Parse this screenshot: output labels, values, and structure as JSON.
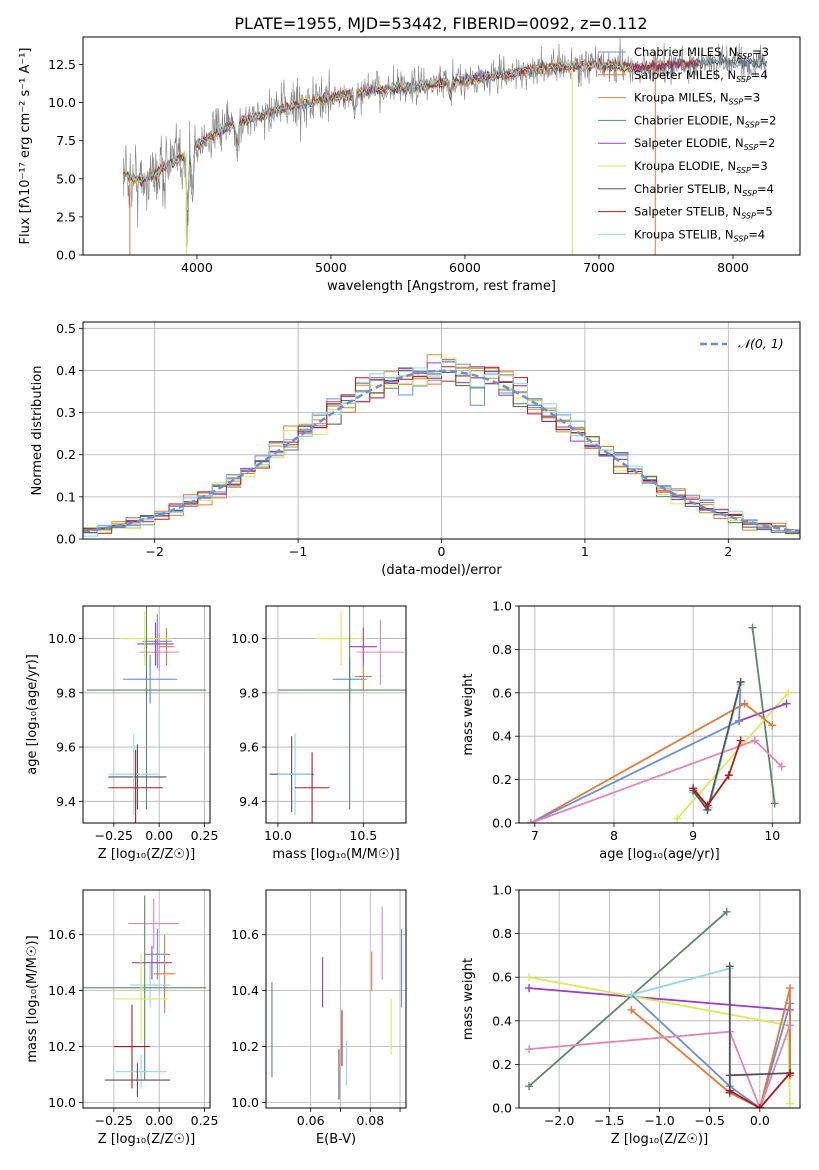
{
  "figure_title": "PLATE=1955, MJD=53442, FIBERID=0092, z=0.112",
  "series_colors": {
    "Chabrier MILES": "#6a8fd8",
    "Salpeter MILES": "#e07b3a",
    "Kroupa MILES": "#c8912e",
    "Chabrier ELODIE": "#5a8a62",
    "Salpeter ELODIE": "#9a3fbf",
    "Kroupa ELODIE": "#d9ea55",
    "Chabrier STELIB": "#555555",
    "Salpeter STELIB": "#b01c1c",
    "Kroupa STELIB": "#8ed8e8",
    "data": "#808080",
    "pink": "#e484b8"
  },
  "chart_data": [
    {
      "id": "spectrum",
      "type": "line",
      "xlabel": "wavelength [Angstrom, rest frame]",
      "ylabel": "Flux [fλ10⁻¹⁷ erg cm⁻² s⁻¹ A⁻¹]",
      "xlim": [
        3150,
        8500
      ],
      "ylim": [
        0,
        14.3
      ],
      "xticks": [
        4000,
        5000,
        6000,
        7000,
        8000
      ],
      "xtick_labels": [
        "4000",
        "5000",
        "6000",
        "7000",
        "8000"
      ],
      "yticks": [
        0,
        2.5,
        5,
        7.5,
        10,
        12.5
      ],
      "ytick_labels": [
        "0.0",
        "2.5",
        "5.0",
        "7.5",
        "10.0",
        "12.5"
      ],
      "grid": false,
      "legend_position": "right",
      "legend": [
        {
          "name": "Chabrier MILES, N",
          "sub": "SSP",
          "suffix": "=3"
        },
        {
          "name": "Salpeter MILES, N",
          "sub": "SSP",
          "suffix": "=4"
        },
        {
          "name": "Kroupa MILES, N",
          "sub": "SSP",
          "suffix": "=3"
        },
        {
          "name": "Chabrier ELODIE, N",
          "sub": "SSP",
          "suffix": "=2"
        },
        {
          "name": "Salpeter ELODIE, N",
          "sub": "SSP",
          "suffix": "=2"
        },
        {
          "name": "Kroupa ELODIE, N",
          "sub": "SSP",
          "suffix": "=3"
        },
        {
          "name": "Chabrier STELIB, N",
          "sub": "SSP",
          "suffix": "=4"
        },
        {
          "name": "Salpeter STELIB, N",
          "sub": "SSP",
          "suffix": "=5"
        },
        {
          "name": "Kroupa STELIB, N",
          "sub": "SSP",
          "suffix": "=4"
        }
      ],
      "continuum": {
        "wavelength": [
          3450,
          3520,
          3600,
          3700,
          3800,
          3900,
          4000,
          4100,
          4200,
          4300,
          4500,
          4700,
          5000,
          5300,
          5600,
          6000,
          6300,
          6600,
          7000,
          7300,
          7600,
          8000,
          8250
        ],
        "flux": [
          5.5,
          5.0,
          4.9,
          5.4,
          6.0,
          6.5,
          7.2,
          7.8,
          8.2,
          8.7,
          9.2,
          9.8,
          10.3,
          10.8,
          11.0,
          11.5,
          11.8,
          12.3,
          12.5,
          12.3,
          12.5,
          12.7,
          12.5
        ]
      },
      "dips": [
        {
          "wavelength": 3930,
          "flux": 2.2
        },
        {
          "wavelength": 3965,
          "flux": 3.4
        },
        {
          "wavelength": 4300,
          "flux": 6.6
        },
        {
          "wavelength": 5175,
          "flux": 9.0
        },
        {
          "wavelength": 5890,
          "flux": 10.2
        }
      ]
    },
    {
      "id": "residuals",
      "type": "histogram",
      "xlabel": "(data-model)/error",
      "ylabel": "Normed distribution",
      "xlim": [
        -2.5,
        2.5
      ],
      "ylim": [
        0,
        0.515
      ],
      "xticks": [
        -2,
        -1,
        0,
        1,
        2
      ],
      "xtick_labels": [
        "−2",
        "−1",
        "0",
        "1",
        "2"
      ],
      "yticks": [
        0,
        0.1,
        0.2,
        0.3,
        0.4,
        0.5
      ],
      "ytick_labels": [
        "0.0",
        "0.1",
        "0.2",
        "0.3",
        "0.4",
        "0.5"
      ],
      "grid": true,
      "bin_width": 0.1,
      "legend_label": "𝒩(0, 1)",
      "legend_position": "top-right",
      "reference": {
        "name": "N(0,1)",
        "mean": 0,
        "sigma": 1
      }
    },
    {
      "id": "age-vs-z",
      "type": "errorbar",
      "xlabel": "Z [log₁₀(Z/Z☉)]",
      "ylabel": "age  [log₁₀(age/yr)]",
      "xlim": [
        -0.42,
        0.28
      ],
      "ylim": [
        9.32,
        10.12
      ],
      "xticks": [
        -0.25,
        0,
        0.25
      ],
      "xtick_labels": [
        "−0.25",
        "0.00",
        "0.25"
      ],
      "yticks": [
        9.4,
        9.6,
        9.8,
        10.0
      ],
      "ytick_labels": [
        "9.4",
        "9.6",
        "9.8",
        "10.0"
      ],
      "grid": true,
      "points": [
        {
          "series": "Chabrier MILES",
          "x": -0.01,
          "xerr": 0.08,
          "y": 9.99,
          "yerr": 0.1
        },
        {
          "series": "Salpeter MILES",
          "x": 0.04,
          "xerr": 0.04,
          "y": 9.97,
          "yerr": 0.07
        },
        {
          "series": "pink",
          "x": 0.0,
          "xerr": 0.11,
          "y": 9.95,
          "yerr": 0.07
        },
        {
          "series": "Salpeter ELODIE",
          "x": -0.02,
          "xerr": 0.1,
          "y": 9.98,
          "yerr": 0.08
        },
        {
          "series": "Kroupa ELODIE",
          "x": -0.08,
          "xerr": 0.14,
          "y": 10.0,
          "yerr": 0.1
        },
        {
          "series": "Kroupa STELIB",
          "x": -0.05,
          "xerr": 0.12,
          "y": 9.85,
          "yerr": 0.08
        },
        {
          "series": "Chabrier MILES",
          "x": -0.05,
          "xerr": 0.15,
          "y": 9.85,
          "yerr": 0.09
        },
        {
          "series": "Chabrier ELODIE",
          "x": -0.07,
          "xerr": 0.33,
          "y": 9.81,
          "yerr": 0.44
        },
        {
          "series": "Chabrier STELIB",
          "x": -0.12,
          "xerr": 0.16,
          "y": 9.49,
          "yerr": 0.12
        },
        {
          "series": "Kroupa STELIB",
          "x": -0.14,
          "xerr": 0.14,
          "y": 9.5,
          "yerr": 0.15
        },
        {
          "series": "Salpeter STELIB",
          "x": -0.13,
          "xerr": 0.15,
          "y": 9.45,
          "yerr": 0.14
        }
      ]
    },
    {
      "id": "age-vs-mass",
      "type": "errorbar",
      "xlabel": "mass [log₁₀(M/M☉)]",
      "ylabel": "",
      "xlim": [
        9.93,
        10.75
      ],
      "ylim": [
        9.32,
        10.12
      ],
      "xticks": [
        10.0,
        10.5
      ],
      "xtick_labels": [
        "10.0",
        "10.5"
      ],
      "yticks": [
        9.4,
        9.6,
        9.8,
        10.0
      ],
      "ytick_labels": [
        "9.4",
        "9.6",
        "9.8",
        "10.0"
      ],
      "grid": true,
      "points": [
        {
          "series": "Kroupa ELODIE",
          "x": 10.37,
          "xerr": 0.15,
          "y": 10.0,
          "yerr": 0.1
        },
        {
          "series": "Salpeter ELODIE",
          "x": 10.5,
          "xerr": 0.08,
          "y": 9.97,
          "yerr": 0.07
        },
        {
          "series": "pink",
          "x": 10.6,
          "xerr": 0.14,
          "y": 9.95,
          "yerr": 0.12
        },
        {
          "series": "Kroupa STELIB",
          "x": 10.42,
          "xerr": 0.08,
          "y": 9.85,
          "yerr": 0.08
        },
        {
          "series": "Chabrier MILES",
          "x": 10.42,
          "xerr": 0.1,
          "y": 9.85,
          "yerr": 0.08
        },
        {
          "series": "Salpeter MILES",
          "x": 10.5,
          "xerr": 0.05,
          "y": 9.86,
          "yerr": 0.05
        },
        {
          "series": "Chabrier ELODIE",
          "x": 10.42,
          "xerr": 0.42,
          "y": 9.81,
          "yerr": 0.44
        },
        {
          "series": "Chabrier STELIB",
          "x": 10.08,
          "xerr": 0.13,
          "y": 9.5,
          "yerr": 0.14
        },
        {
          "series": "Kroupa STELIB",
          "x": 10.1,
          "xerr": 0.1,
          "y": 9.5,
          "yerr": 0.15
        },
        {
          "series": "Salpeter STELIB",
          "x": 10.2,
          "xerr": 0.1,
          "y": 9.45,
          "yerr": 0.13
        }
      ]
    },
    {
      "id": "weight-vs-age",
      "type": "line",
      "xlabel": "age  [log₁₀(age/yr)]",
      "ylabel": "mass weight",
      "xlim": [
        6.8,
        10.35
      ],
      "ylim": [
        0,
        1.0
      ],
      "xticks": [
        7,
        8,
        9,
        10
      ],
      "xtick_labels": [
        "7",
        "8",
        "9",
        "10"
      ],
      "yticks": [
        0,
        0.2,
        0.4,
        0.6,
        0.8,
        1.0
      ],
      "ytick_labels": [
        "0.0",
        "0.2",
        "0.4",
        "0.6",
        "0.8",
        "1.0"
      ],
      "grid": true,
      "series": [
        {
          "series": "Chabrier ELODIE",
          "x": [
            9.75,
            10.03
          ],
          "y": [
            0.9,
            0.09
          ]
        },
        {
          "series": "Kroupa ELODIE",
          "x": [
            8.8,
            10.2
          ],
          "y": [
            0.02,
            0.6
          ]
        },
        {
          "series": "Salpeter ELODIE",
          "x": [
            9.58,
            10.18
          ],
          "y": [
            0.47,
            0.55
          ]
        },
        {
          "series": "Salpeter MILES",
          "x": [
            6.95,
            9.65,
            10.0
          ],
          "y": [
            0.0,
            0.55,
            0.45
          ]
        },
        {
          "series": "Chabrier MILES",
          "x": [
            6.95,
            9.58,
            9.6
          ],
          "y": [
            0.0,
            0.47,
            0.65
          ]
        },
        {
          "series": "pink",
          "x": [
            6.95,
            9.78,
            10.12
          ],
          "y": [
            0.0,
            0.38,
            0.26
          ]
        },
        {
          "series": "Kroupa STELIB",
          "x": [
            9.0,
            9.2,
            9.6
          ],
          "y": [
            0.14,
            0.07,
            0.64
          ]
        },
        {
          "series": "Chabrier STELIB",
          "x": [
            9.0,
            9.18,
            9.6
          ],
          "y": [
            0.15,
            0.06,
            0.65
          ]
        },
        {
          "series": "Salpeter STELIB",
          "x": [
            9.0,
            9.18,
            9.45,
            9.6
          ],
          "y": [
            0.16,
            0.08,
            0.22,
            0.38
          ]
        }
      ]
    },
    {
      "id": "mass-vs-z",
      "type": "errorbar",
      "xlabel": "Z [log₁₀(Z/Z☉)]",
      "ylabel": "mass [log₁₀(M/M☉)]",
      "xlim": [
        -0.42,
        0.28
      ],
      "ylim": [
        9.98,
        10.76
      ],
      "xticks": [
        -0.25,
        0,
        0.25
      ],
      "xtick_labels": [
        "−0.25",
        "0.00",
        "0.25"
      ],
      "yticks": [
        10.0,
        10.2,
        10.4,
        10.6
      ],
      "ytick_labels": [
        "10.0",
        "10.2",
        "10.4",
        "10.6"
      ],
      "grid": true,
      "points": [
        {
          "series": "pink",
          "x": -0.03,
          "xerr": 0.14,
          "y": 10.64,
          "yerr": 0.09
        },
        {
          "series": "Chabrier MILES",
          "x": -0.01,
          "xerr": 0.07,
          "y": 10.53,
          "yerr": 0.09
        },
        {
          "series": "Salpeter ELODIE",
          "x": -0.04,
          "xerr": 0.11,
          "y": 10.5,
          "yerr": 0.06
        },
        {
          "series": "Salpeter MILES",
          "x": 0.03,
          "xerr": 0.06,
          "y": 10.46,
          "yerr": 0.14
        },
        {
          "series": "Kroupa STELIB",
          "x": -0.05,
          "xerr": 0.11,
          "y": 10.42,
          "yerr": 0.08
        },
        {
          "series": "Chabrier ELODIE",
          "x": -0.08,
          "xerr": 0.34,
          "y": 10.41,
          "yerr": 0.33
        },
        {
          "series": "Kroupa ELODIE",
          "x": -0.1,
          "xerr": 0.15,
          "y": 10.37,
          "yerr": 0.16
        },
        {
          "series": "Salpeter STELIB",
          "x": -0.15,
          "xerr": 0.1,
          "y": 10.2,
          "yerr": 0.15
        },
        {
          "series": "Kroupa STELIB",
          "x": -0.1,
          "xerr": 0.14,
          "y": 10.11,
          "yerr": 0.06
        },
        {
          "series": "Chabrier STELIB",
          "x": -0.12,
          "xerr": 0.18,
          "y": 10.08,
          "yerr": 0.06
        }
      ]
    },
    {
      "id": "mass-vs-ebv",
      "type": "errorbar",
      "xlabel": "E(B-V)",
      "ylabel": "",
      "xlim": [
        0.045,
        0.092
      ],
      "ylim": [
        9.98,
        10.76
      ],
      "xticks": [
        0.06,
        0.07,
        0.08,
        0.09
      ],
      "xtick_labels": [
        "0.06",
        "",
        "0.08",
        ""
      ],
      "yticks": [
        10.0,
        10.2,
        10.4,
        10.6
      ],
      "ytick_labels": [
        "10.0",
        "10.2",
        "10.4",
        "10.6"
      ],
      "grid": true,
      "points": [
        {
          "series": "Chabrier ELODIE",
          "x": 0.047,
          "y": 10.26,
          "yerr": 0.17
        },
        {
          "series": "Salpeter ELODIE",
          "x": 0.064,
          "y": 10.43,
          "yerr": 0.09
        },
        {
          "series": "Chabrier STELIB",
          "x": 0.0695,
          "y": 10.1,
          "yerr": 0.09
        },
        {
          "series": "Salpeter STELIB",
          "x": 0.0705,
          "y": 10.23,
          "yerr": 0.1
        },
        {
          "series": "Kroupa STELIB",
          "x": 0.072,
          "y": 10.14,
          "yerr": 0.08
        },
        {
          "series": "Salpeter MILES",
          "x": 0.0805,
          "y": 10.47,
          "yerr": 0.07
        },
        {
          "series": "pink",
          "x": 0.084,
          "y": 10.57,
          "yerr": 0.13
        },
        {
          "series": "Kroupa ELODIE",
          "x": 0.087,
          "y": 10.27,
          "yerr": 0.1
        },
        {
          "series": "Chabrier MILES",
          "x": 0.0905,
          "y": 10.48,
          "yerr": 0.14
        }
      ]
    },
    {
      "id": "weight-vs-z",
      "type": "line",
      "xlabel": "Z [log₁₀(Z/Z☉)]",
      "ylabel": "mass weight",
      "xlim": [
        -2.4,
        0.4
      ],
      "ylim": [
        0,
        1.0
      ],
      "xticks": [
        -2.0,
        -1.5,
        -1.0,
        -0.5,
        0.0
      ],
      "xtick_labels": [
        "−2.0",
        "−1.5",
        "−1.0",
        "−0.5",
        "0.0"
      ],
      "yticks": [
        0,
        0.2,
        0.4,
        0.6,
        0.8,
        1.0
      ],
      "ytick_labels": [
        "0.0",
        "0.2",
        "0.4",
        "0.6",
        "0.8",
        "1.0"
      ],
      "grid": true,
      "series": [
        {
          "series": "Chabrier ELODIE",
          "x": [
            -2.3,
            -0.33
          ],
          "y": [
            0.1,
            0.9
          ]
        },
        {
          "series": "Salpeter ELODIE",
          "x": [
            -2.3,
            0.3
          ],
          "y": [
            0.55,
            0.45
          ]
        },
        {
          "series": "Kroupa ELODIE",
          "x": [
            -2.3,
            0.28,
            0.3
          ],
          "y": [
            0.6,
            0.38,
            0.02
          ]
        },
        {
          "series": "Chabrier MILES",
          "x": [
            -1.28,
            -0.3,
            0.0,
            0.3,
            0.3
          ],
          "y": [
            0.52,
            0.1,
            0.0,
            0.48,
            0.15
          ]
        },
        {
          "series": "Salpeter MILES",
          "x": [
            -1.28,
            -0.3,
            0.0,
            0.3,
            0.3
          ],
          "y": [
            0.45,
            0.07,
            0.0,
            0.55,
            0.15
          ]
        },
        {
          "series": "pink",
          "x": [
            -2.3,
            -0.3,
            0.0,
            0.3
          ],
          "y": [
            0.27,
            0.35,
            0.0,
            0.38
          ]
        },
        {
          "series": "Kroupa STELIB",
          "x": [
            -1.28,
            -0.3,
            -0.3
          ],
          "y": [
            0.52,
            0.64,
            0.07
          ]
        },
        {
          "series": "Chabrier STELIB",
          "x": [
            -0.3,
            -0.3,
            -0.3,
            0.3
          ],
          "y": [
            0.65,
            0.07,
            0.15,
            0.16
          ]
        },
        {
          "series": "Salpeter STELIB",
          "x": [
            -0.3,
            0.0,
            0.3
          ],
          "y": [
            0.08,
            0.0,
            0.16
          ]
        }
      ]
    }
  ]
}
